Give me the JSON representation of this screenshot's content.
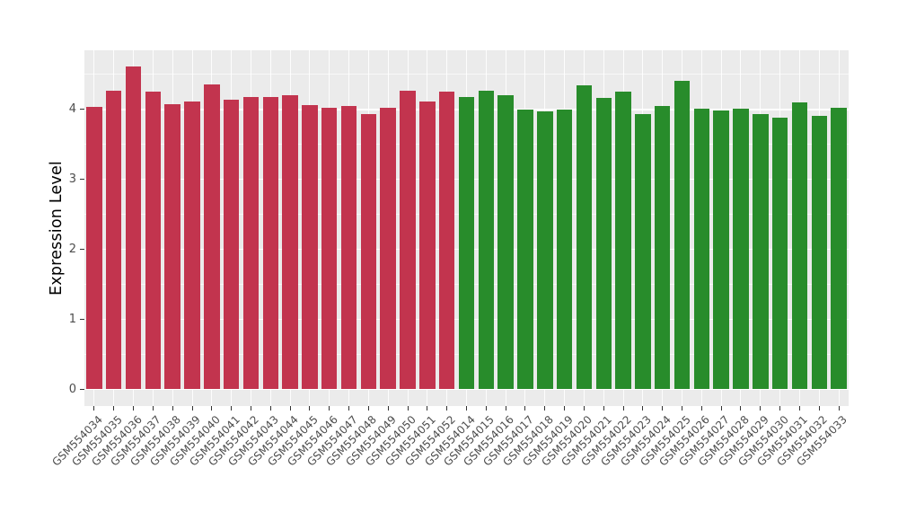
{
  "chart_data": {
    "type": "bar",
    "title": "",
    "xlabel": "",
    "ylabel": "Expression Level",
    "ylim": [
      -0.24,
      4.85
    ],
    "yticks": [
      0,
      1,
      2,
      3,
      4
    ],
    "grid": "white major and minor horizontal gridlines plus vertical gridlines at each category center, on light gray panel",
    "legend": "none",
    "x_tick_rotation_degrees": 45,
    "categories": [
      "GSM554034",
      "GSM554035",
      "GSM554036",
      "GSM554037",
      "GSM554038",
      "GSM554039",
      "GSM554040",
      "GSM554041",
      "GSM554042",
      "GSM554043",
      "GSM554044",
      "GSM554045",
      "GSM554046",
      "GSM554047",
      "GSM554048",
      "GSM554049",
      "GSM554050",
      "GSM554051",
      "GSM554052",
      "GSM554014",
      "GSM554015",
      "GSM554016",
      "GSM554017",
      "GSM554018",
      "GSM554019",
      "GSM554020",
      "GSM554021",
      "GSM554022",
      "GSM554023",
      "GSM554024",
      "GSM554025",
      "GSM554026",
      "GSM554027",
      "GSM554028",
      "GSM554029",
      "GSM554030",
      "GSM554031",
      "GSM554032",
      "GSM554033"
    ],
    "values": [
      4.04,
      4.27,
      4.61,
      4.25,
      4.08,
      4.11,
      4.36,
      4.14,
      4.18,
      4.18,
      4.2,
      4.06,
      4.02,
      4.05,
      3.93,
      4.03,
      4.27,
      4.12,
      4.25,
      4.18,
      4.27,
      4.2,
      4.0,
      3.97,
      4.0,
      4.35,
      4.16,
      4.25,
      3.93,
      4.05,
      4.41,
      4.01,
      3.99,
      4.01,
      3.94,
      3.88,
      4.1,
      3.91,
      4.03
    ],
    "groups": [
      "red",
      "red",
      "red",
      "red",
      "red",
      "red",
      "red",
      "red",
      "red",
      "red",
      "red",
      "red",
      "red",
      "red",
      "red",
      "red",
      "red",
      "red",
      "red",
      "green",
      "green",
      "green",
      "green",
      "green",
      "green",
      "green",
      "green",
      "green",
      "green",
      "green",
      "green",
      "green",
      "green",
      "green",
      "green",
      "green",
      "green",
      "green",
      "green"
    ],
    "group_colors": {
      "red": "#C2344E",
      "green": "#288C2B"
    }
  },
  "colors": {
    "panel_background": "#EBEBEB",
    "gridline": "#FFFFFF",
    "tick_mark": "#333333",
    "tick_label": "#4D4D4D",
    "axis_title": "#000000",
    "page_background": "#FFFFFF"
  }
}
